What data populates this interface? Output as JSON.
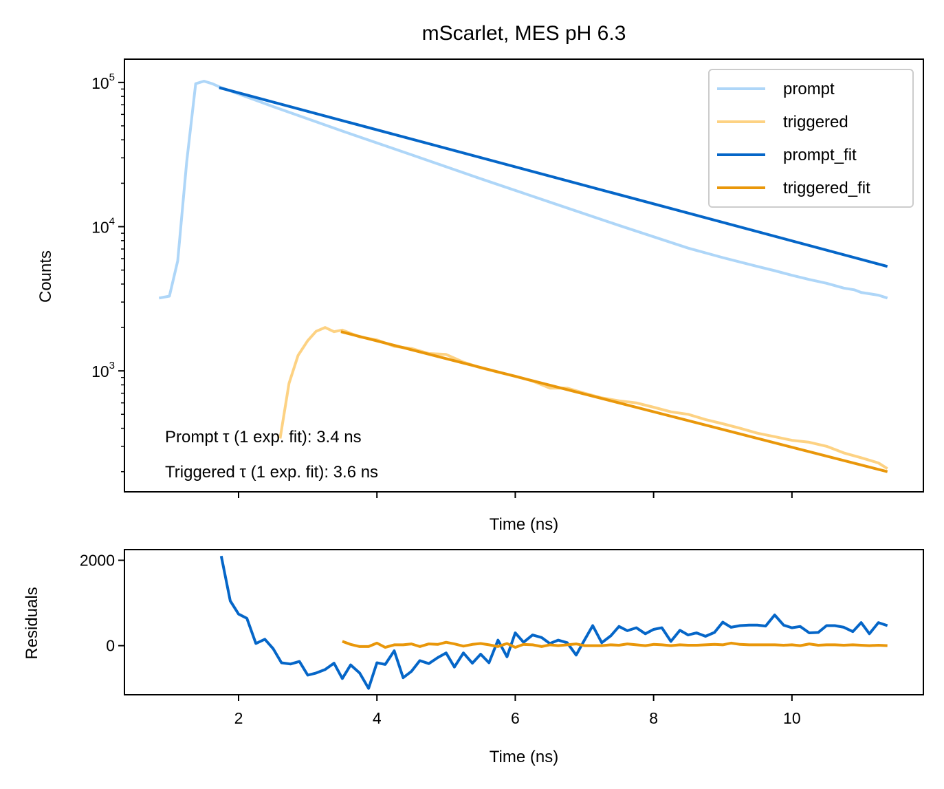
{
  "colors": {
    "prompt": "#aed6f8",
    "triggered": "#fdd283",
    "prompt_fit": "#0566c8",
    "triggered_fit": "#e9970a"
  },
  "chart_data": [
    {
      "type": "line",
      "title": "mScarlet, MES pH 6.3",
      "xlabel": "Time (ns)",
      "ylabel": "Counts",
      "yscale": "log",
      "xlim": [
        0.35,
        11.9
      ],
      "ylim": [
        145,
        145000
      ],
      "xticks": [
        2,
        4,
        6,
        8,
        10
      ],
      "xticklabels_visible": false,
      "yticks": [
        {
          "value": 1000,
          "base": "10",
          "exp": "3"
        },
        {
          "value": 10000,
          "base": "10",
          "exp": "4"
        },
        {
          "value": 100000,
          "base": "10",
          "exp": "5"
        }
      ],
      "legend": {
        "location": "upper right",
        "entries": [
          "prompt",
          "triggered",
          "prompt_fit",
          "triggered_fit"
        ]
      },
      "annotations": [
        "Prompt τ (1 exp. fit): 3.4 ns",
        "Triggered τ (1 exp. fit): 3.6 ns"
      ],
      "series": [
        {
          "name": "prompt",
          "color": "#aed6f8",
          "x": [
            0.85,
            1.0,
            1.12,
            1.25,
            1.38,
            1.5,
            1.62,
            1.75,
            2.5,
            3.5,
            4.5,
            5.5,
            6.5,
            7.5,
            8.5,
            9.0,
            9.5,
            9.75,
            10.0,
            10.25,
            10.5,
            10.75,
            10.9,
            11.0,
            11.25,
            11.38
          ],
          "y": [
            3200,
            3300,
            5800,
            28000,
            98000,
            102000,
            98000,
            92000,
            68000,
            46000,
            31500,
            21500,
            14800,
            10200,
            7100,
            6100,
            5300,
            4950,
            4600,
            4300,
            4050,
            3750,
            3650,
            3500,
            3350,
            3200
          ]
        },
        {
          "name": "triggered",
          "color": "#fdd283",
          "x": [
            2.6,
            2.73,
            2.86,
            3.0,
            3.12,
            3.25,
            3.38,
            3.5,
            3.75,
            4.0,
            4.25,
            4.5,
            4.75,
            5.0,
            5.25,
            5.5,
            5.75,
            6.0,
            6.25,
            6.5,
            6.75,
            7.0,
            7.25,
            7.5,
            7.75,
            8.0,
            8.25,
            8.5,
            8.75,
            9.0,
            9.25,
            9.5,
            9.75,
            10.0,
            10.25,
            10.5,
            10.75,
            11.0,
            11.25,
            11.38
          ],
          "y": [
            340,
            820,
            1280,
            1620,
            1880,
            2000,
            1870,
            1920,
            1720,
            1640,
            1480,
            1430,
            1320,
            1300,
            1150,
            1050,
            980,
            920,
            850,
            760,
            760,
            700,
            650,
            620,
            600,
            560,
            520,
            500,
            460,
            430,
            400,
            370,
            350,
            330,
            320,
            300,
            270,
            250,
            230,
            210
          ]
        },
        {
          "name": "prompt_fit",
          "color": "#0566c8",
          "x": [
            1.72,
            11.38
          ],
          "y": [
            92000,
            5300
          ]
        },
        {
          "name": "triggered_fit",
          "color": "#e9970a",
          "x": [
            3.48,
            11.38
          ],
          "y": [
            1870,
            200
          ]
        }
      ]
    },
    {
      "type": "line",
      "xlabel": "Time (ns)",
      "ylabel": "Residuals",
      "xlim": [
        0.35,
        11.9
      ],
      "ylim": [
        -1150,
        2250
      ],
      "xticks": [
        2,
        4,
        6,
        8,
        10
      ],
      "xticklabels": [
        "2",
        "4",
        "6",
        "8",
        "10"
      ],
      "yticks": [
        0,
        2000
      ],
      "yticklabels": [
        "0",
        "2000"
      ],
      "series": [
        {
          "color": "#0566c8",
          "x": [
            1.75,
            1.88,
            2.0,
            2.12,
            2.25,
            2.38,
            2.5,
            2.62,
            2.75,
            2.88,
            3.0,
            3.12,
            3.25,
            3.38,
            3.5,
            3.62,
            3.75,
            3.88,
            4.0,
            4.12,
            4.25,
            4.38,
            4.5,
            4.62,
            4.75,
            4.88,
            5.0,
            5.12,
            5.25,
            5.38,
            5.5,
            5.62,
            5.75,
            5.88,
            6.0,
            6.12,
            6.25,
            6.38,
            6.5,
            6.62,
            6.75,
            6.88,
            7.0,
            7.12,
            7.25,
            7.38,
            7.5,
            7.62,
            7.75,
            7.88,
            8.0,
            8.12,
            8.25,
            8.38,
            8.5,
            8.62,
            8.75,
            8.88,
            9.0,
            9.12,
            9.25,
            9.38,
            9.5,
            9.62,
            9.75,
            9.88,
            10.0,
            10.12,
            10.25,
            10.38,
            10.5,
            10.62,
            10.75,
            10.88,
            11.0,
            11.12,
            11.25,
            11.38
          ],
          "y": [
            2100,
            1050,
            740,
            640,
            50,
            150,
            -70,
            -400,
            -430,
            -370,
            -690,
            -640,
            -560,
            -410,
            -770,
            -450,
            -640,
            -1000,
            -400,
            -440,
            -120,
            -750,
            -600,
            -350,
            -420,
            -280,
            -170,
            -500,
            -170,
            -410,
            -200,
            -400,
            130,
            -260,
            300,
            80,
            250,
            190,
            50,
            130,
            70,
            -220,
            130,
            470,
            70,
            230,
            450,
            350,
            420,
            280,
            380,
            420,
            100,
            360,
            250,
            300,
            220,
            310,
            550,
            430,
            470,
            480,
            480,
            460,
            720,
            480,
            420,
            450,
            300,
            310,
            470,
            470,
            430,
            330,
            540,
            280,
            540,
            470
          ]
        },
        {
          "color": "#e9970a",
          "x": [
            3.5,
            3.62,
            3.75,
            3.88,
            4.0,
            4.12,
            4.25,
            4.38,
            4.5,
            4.62,
            4.75,
            4.88,
            5.0,
            5.12,
            5.25,
            5.38,
            5.5,
            5.62,
            5.75,
            5.88,
            6.0,
            6.12,
            6.25,
            6.38,
            6.5,
            6.62,
            6.75,
            6.88,
            7.0,
            7.12,
            7.25,
            7.38,
            7.5,
            7.62,
            7.75,
            7.88,
            8.0,
            8.12,
            8.25,
            8.38,
            8.5,
            8.62,
            8.75,
            8.88,
            9.0,
            9.12,
            9.25,
            9.38,
            9.5,
            9.62,
            9.75,
            9.88,
            10.0,
            10.12,
            10.25,
            10.38,
            10.5,
            10.62,
            10.75,
            10.88,
            11.0,
            11.12,
            11.25,
            11.38
          ],
          "y": [
            100,
            30,
            -20,
            -20,
            60,
            -40,
            20,
            20,
            40,
            -20,
            40,
            30,
            80,
            40,
            -10,
            30,
            50,
            20,
            -20,
            50,
            -40,
            30,
            20,
            -20,
            20,
            0,
            20,
            40,
            0,
            0,
            0,
            20,
            10,
            40,
            20,
            0,
            30,
            20,
            0,
            20,
            10,
            10,
            20,
            30,
            20,
            60,
            30,
            20,
            20,
            20,
            20,
            10,
            20,
            0,
            40,
            10,
            20,
            20,
            10,
            20,
            10,
            0,
            10,
            0
          ]
        }
      ]
    }
  ]
}
